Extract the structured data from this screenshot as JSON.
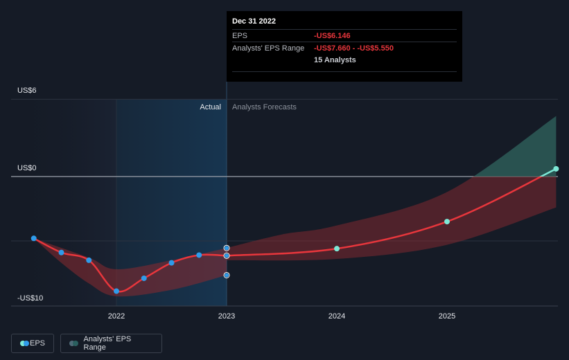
{
  "chart_data": {
    "type": "line",
    "title": "",
    "y_axis": {
      "min": -10,
      "max": 6,
      "ticks": [
        {
          "value": 6,
          "label": "US$6"
        },
        {
          "value": 0,
          "label": "US$0"
        },
        {
          "value": -10,
          "label": "-US$10"
        }
      ]
    },
    "x_axis": {
      "min": 2021.25,
      "max": 2025.99,
      "ticks": [
        {
          "value": 2022,
          "label": "2022"
        },
        {
          "value": 2023,
          "label": "2023"
        },
        {
          "value": 2024,
          "label": "2024"
        },
        {
          "value": 2025,
          "label": "2025"
        }
      ]
    },
    "section_labels": {
      "actual": "Actual",
      "forecast": "Analysts Forecasts"
    },
    "divider_x": 2023.0,
    "actual_eps": [
      {
        "x": 2021.25,
        "y": -4.8
      },
      {
        "x": 2021.5,
        "y": -5.9
      },
      {
        "x": 2021.75,
        "y": -6.5
      },
      {
        "x": 2022.0,
        "y": -8.9
      },
      {
        "x": 2022.25,
        "y": -7.9
      },
      {
        "x": 2022.5,
        "y": -6.7
      },
      {
        "x": 2022.75,
        "y": -6.1
      },
      {
        "x": 2023.0,
        "y": -6.146
      }
    ],
    "actual_range": {
      "upper": [
        {
          "x": 2021.25,
          "y": -4.8
        },
        {
          "x": 2021.75,
          "y": -6.3
        },
        {
          "x": 2022.0,
          "y": -7.2
        },
        {
          "x": 2022.5,
          "y": -6.5
        },
        {
          "x": 2023.0,
          "y": -5.55
        }
      ],
      "lower": [
        {
          "x": 2021.25,
          "y": -4.8
        },
        {
          "x": 2021.5,
          "y": -6.7
        },
        {
          "x": 2021.75,
          "y": -8.3
        },
        {
          "x": 2022.0,
          "y": -9.3
        },
        {
          "x": 2022.5,
          "y": -8.8
        },
        {
          "x": 2023.0,
          "y": -7.66
        }
      ]
    },
    "forecast_eps": [
      {
        "x": 2023.0,
        "y": -6.146
      },
      {
        "x": 2024.0,
        "y": -5.6
      },
      {
        "x": 2025.0,
        "y": -3.5
      },
      {
        "x": 2025.99,
        "y": 0.6
      }
    ],
    "forecast_range": {
      "upper": [
        {
          "x": 2023.0,
          "y": -5.55
        },
        {
          "x": 2023.5,
          "y": -4.5
        },
        {
          "x": 2024.0,
          "y": -3.8
        },
        {
          "x": 2025.0,
          "y": -1.2
        },
        {
          "x": 2025.99,
          "y": 4.7
        }
      ],
      "lower": [
        {
          "x": 2023.0,
          "y": -6.5
        },
        {
          "x": 2024.0,
          "y": -6.4
        },
        {
          "x": 2025.0,
          "y": -5.3
        },
        {
          "x": 2025.99,
          "y": -2.4
        }
      ]
    },
    "markers_2023": [
      -5.55,
      -6.146,
      -7.66
    ],
    "colors": {
      "eps_line": "#e8363c",
      "actual_dot": "#2f9bea",
      "forecast_dot": "#7de8d6",
      "range_neg": "#8a2a30",
      "range_pos": "#2d5c58"
    }
  },
  "tooltip": {
    "date": "Dec 31 2022",
    "eps_label": "EPS",
    "eps_value": "-US$6.146",
    "range_label": "Analysts' EPS Range",
    "range_value": "-US$7.660 - -US$5.550",
    "analysts": "15 Analysts"
  },
  "legend": {
    "eps": "EPS",
    "range": "Analysts' EPS Range"
  }
}
